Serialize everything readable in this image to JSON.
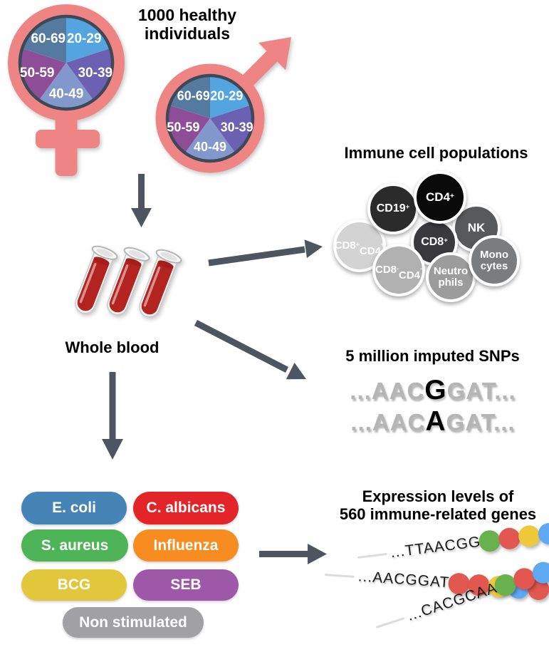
{
  "header": {
    "title_line1": "1000 healthy",
    "title_line2": "individuals"
  },
  "demographics": {
    "symbol_color": "#ee8484",
    "age_groups": [
      {
        "label": "20-29",
        "color": "#54a4e0"
      },
      {
        "label": "30-39",
        "color": "#6c60b2"
      },
      {
        "label": "40-49",
        "color": "#8298cc"
      },
      {
        "label": "50-59",
        "color": "#8e4e97"
      },
      {
        "label": "60-69",
        "color": "#557a9f"
      }
    ]
  },
  "blood": {
    "label": "Whole blood",
    "tube_color": "#b3231f",
    "tube_count": 3
  },
  "immune": {
    "title": "Immune cell populations",
    "cells": [
      {
        "lines": [
          "CD19+"
        ],
        "color": "#2b2b2b"
      },
      {
        "lines": [
          "CD4+"
        ],
        "color": "#0a0a0a"
      },
      {
        "lines": [
          "NK"
        ],
        "color": "#58595b"
      },
      {
        "lines": [
          "CD8+",
          "CD4+"
        ],
        "color": "#d3d3d3"
      },
      {
        "lines": [
          "CD8+"
        ],
        "color": "#3a3a3c"
      },
      {
        "lines": [
          "Mono",
          "cytes"
        ],
        "color": "#7b7c7e"
      },
      {
        "lines": [
          "CD8-",
          "CD4-"
        ],
        "color": "#b1b1b1"
      },
      {
        "lines": [
          "Neutro",
          "phils"
        ],
        "color": "#9c9c9c"
      }
    ]
  },
  "snp": {
    "title": "5 million imputed SNPs",
    "sequences": [
      {
        "left": "...AAC",
        "variant": "G",
        "right": "GAT..."
      },
      {
        "left": "...AAC",
        "variant": "A",
        "right": "GAT..."
      }
    ]
  },
  "stimuli": {
    "items": [
      {
        "label": "E. coli",
        "color": "#4584b4"
      },
      {
        "label": "C. albicans",
        "color": "#e3252a"
      },
      {
        "label": "S. aureus",
        "color": "#4db557"
      },
      {
        "label": "Influenza",
        "color": "#f78c20"
      },
      {
        "label": "BCG",
        "color": "#e2c63c"
      },
      {
        "label": "SEB",
        "color": "#9d58a7"
      },
      {
        "label": "Non stimulated",
        "color": "#a1a1a3"
      }
    ]
  },
  "expression": {
    "title_line1": "Expression levels of",
    "title_line2": "560 immune-related genes",
    "dot_colors": {
      "green": "#68b24e",
      "red": "#e2574f",
      "yellow": "#efc93b",
      "blue": "#5fa8f2"
    },
    "genes": [
      {
        "sequence": "...TTAACGG",
        "dots": [
          "green",
          "red",
          "yellow",
          "blue",
          "blue"
        ]
      },
      {
        "sequence": "...AACGGAT",
        "dots": [
          "red",
          "red",
          "yellow",
          "blue",
          "red"
        ]
      },
      {
        "sequence": "...CACGCAA",
        "dots": [
          "green",
          "red",
          "blue",
          "red",
          "red"
        ]
      }
    ]
  },
  "arrow_color": "#4d5560"
}
